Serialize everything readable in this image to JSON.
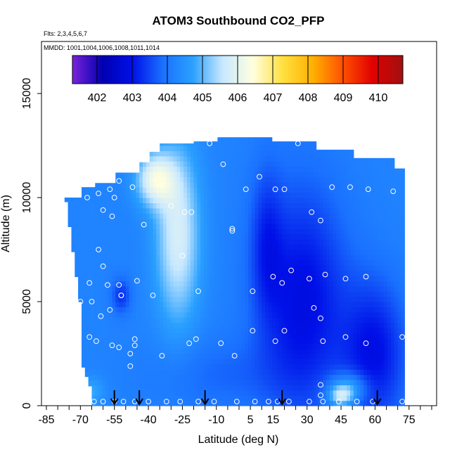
{
  "chart_data": {
    "type": "heatmap",
    "title": "ATOM3 Southbound CO2_PFP",
    "flights_note": "Flts: 2,3,4,5,6,7",
    "dates_note": "MMDD: 1001,1004,1006,1008,1011,1014",
    "xlabel": "Latitude (deg N)",
    "ylabel": "Altitude (m)",
    "xlim": [
      -85,
      85
    ],
    "ylim": [
      0,
      17500
    ],
    "x_ticks": [
      "-85",
      "-70",
      "-55",
      "-40",
      "-25",
      "-10",
      "5",
      "15",
      "30",
      "45",
      "60",
      "75"
    ],
    "x_tick_values": [
      -85,
      -70,
      -55,
      -40,
      -25,
      -10,
      5,
      15,
      30,
      45,
      60,
      75
    ],
    "y_ticks": [
      "0",
      "5000",
      "10000",
      "15000"
    ],
    "y_tick_values": [
      0,
      5000,
      10000,
      15000
    ],
    "colorbar": {
      "labels": [
        "402",
        "403",
        "404",
        "405",
        "406",
        "407",
        "408",
        "409",
        "410"
      ],
      "range": [
        401.3,
        410.7
      ],
      "colors": [
        "#7b22d8",
        "#0000b0",
        "#0010e8",
        "#1a70ff",
        "#2aa0ff",
        "#c8e8ff",
        "#ffffe0",
        "#ffe040",
        "#ffb000",
        "#ff5000",
        "#e00000",
        "#a01010"
      ]
    },
    "profile_markers_lat": [
      -55,
      -44,
      -15,
      19,
      61
    ],
    "samples": [
      [
        -67,
        10000
      ],
      [
        -62,
        10200
      ],
      [
        -57,
        10400
      ],
      [
        -55,
        10000
      ],
      [
        -53,
        10800
      ],
      [
        -47,
        10500
      ],
      [
        -60,
        9400
      ],
      [
        -56,
        9100
      ],
      [
        -42,
        8700
      ],
      [
        -30,
        9600
      ],
      [
        -24,
        9300
      ],
      [
        -21,
        9300
      ],
      [
        -13,
        12600
      ],
      [
        -7,
        11600
      ],
      [
        -3,
        8500
      ],
      [
        -3,
        8400
      ],
      [
        3,
        10400
      ],
      [
        9,
        11000
      ],
      [
        16,
        10400
      ],
      [
        20,
        10400
      ],
      [
        26,
        12600
      ],
      [
        32,
        9300
      ],
      [
        36,
        8900
      ],
      [
        41,
        10500
      ],
      [
        49,
        10500
      ],
      [
        57,
        10400
      ],
      [
        68,
        10300
      ],
      [
        70,
        11800
      ],
      [
        -62,
        7500
      ],
      [
        -60,
        6700
      ],
      [
        -58,
        5800
      ],
      [
        -53,
        5800
      ],
      [
        -52,
        5300
      ],
      [
        -45,
        6000
      ],
      [
        -38,
        5300
      ],
      [
        -25,
        7200
      ],
      [
        -18,
        5500
      ],
      [
        6,
        5500
      ],
      [
        15,
        6200
      ],
      [
        19,
        5900
      ],
      [
        23,
        6500
      ],
      [
        31,
        6100
      ],
      [
        38,
        6300
      ],
      [
        47,
        6100
      ],
      [
        56,
        6200
      ],
      [
        -66,
        5900
      ],
      [
        -65,
        5000
      ],
      [
        -61,
        4300
      ],
      [
        -57,
        4600
      ],
      [
        -52,
        5300
      ],
      [
        -70,
        5000
      ],
      [
        -66,
        3300
      ],
      [
        -63,
        3100
      ],
      [
        -56,
        2900
      ],
      [
        -53,
        2800
      ],
      [
        -48,
        2500
      ],
      [
        -46,
        3200
      ],
      [
        -46,
        2900
      ],
      [
        -48,
        1900
      ],
      [
        -34,
        2400
      ],
      [
        -22,
        3000
      ],
      [
        -19,
        3200
      ],
      [
        -8,
        3000
      ],
      [
        -2,
        2400
      ],
      [
        6,
        3600
      ],
      [
        16,
        3100
      ],
      [
        20,
        3600
      ],
      [
        33,
        4700
      ],
      [
        36,
        4200
      ],
      [
        37,
        3100
      ],
      [
        47,
        3300
      ],
      [
        56,
        3000
      ],
      [
        72,
        3300
      ],
      [
        -67,
        200
      ],
      [
        -64,
        200
      ],
      [
        -60,
        200
      ],
      [
        -55,
        200
      ],
      [
        -51,
        200
      ],
      [
        -46,
        200
      ],
      [
        -40,
        200
      ],
      [
        -32,
        200
      ],
      [
        -26,
        200
      ],
      [
        -18,
        200
      ],
      [
        -11,
        200
      ],
      [
        -1,
        200
      ],
      [
        7,
        200
      ],
      [
        13,
        200
      ],
      [
        17,
        200
      ],
      [
        22,
        200
      ],
      [
        31,
        200
      ],
      [
        36,
        500
      ],
      [
        36,
        1000
      ],
      [
        37,
        200
      ],
      [
        44,
        200
      ],
      [
        52,
        200
      ],
      [
        59,
        200
      ],
      [
        72,
        200
      ]
    ]
  }
}
